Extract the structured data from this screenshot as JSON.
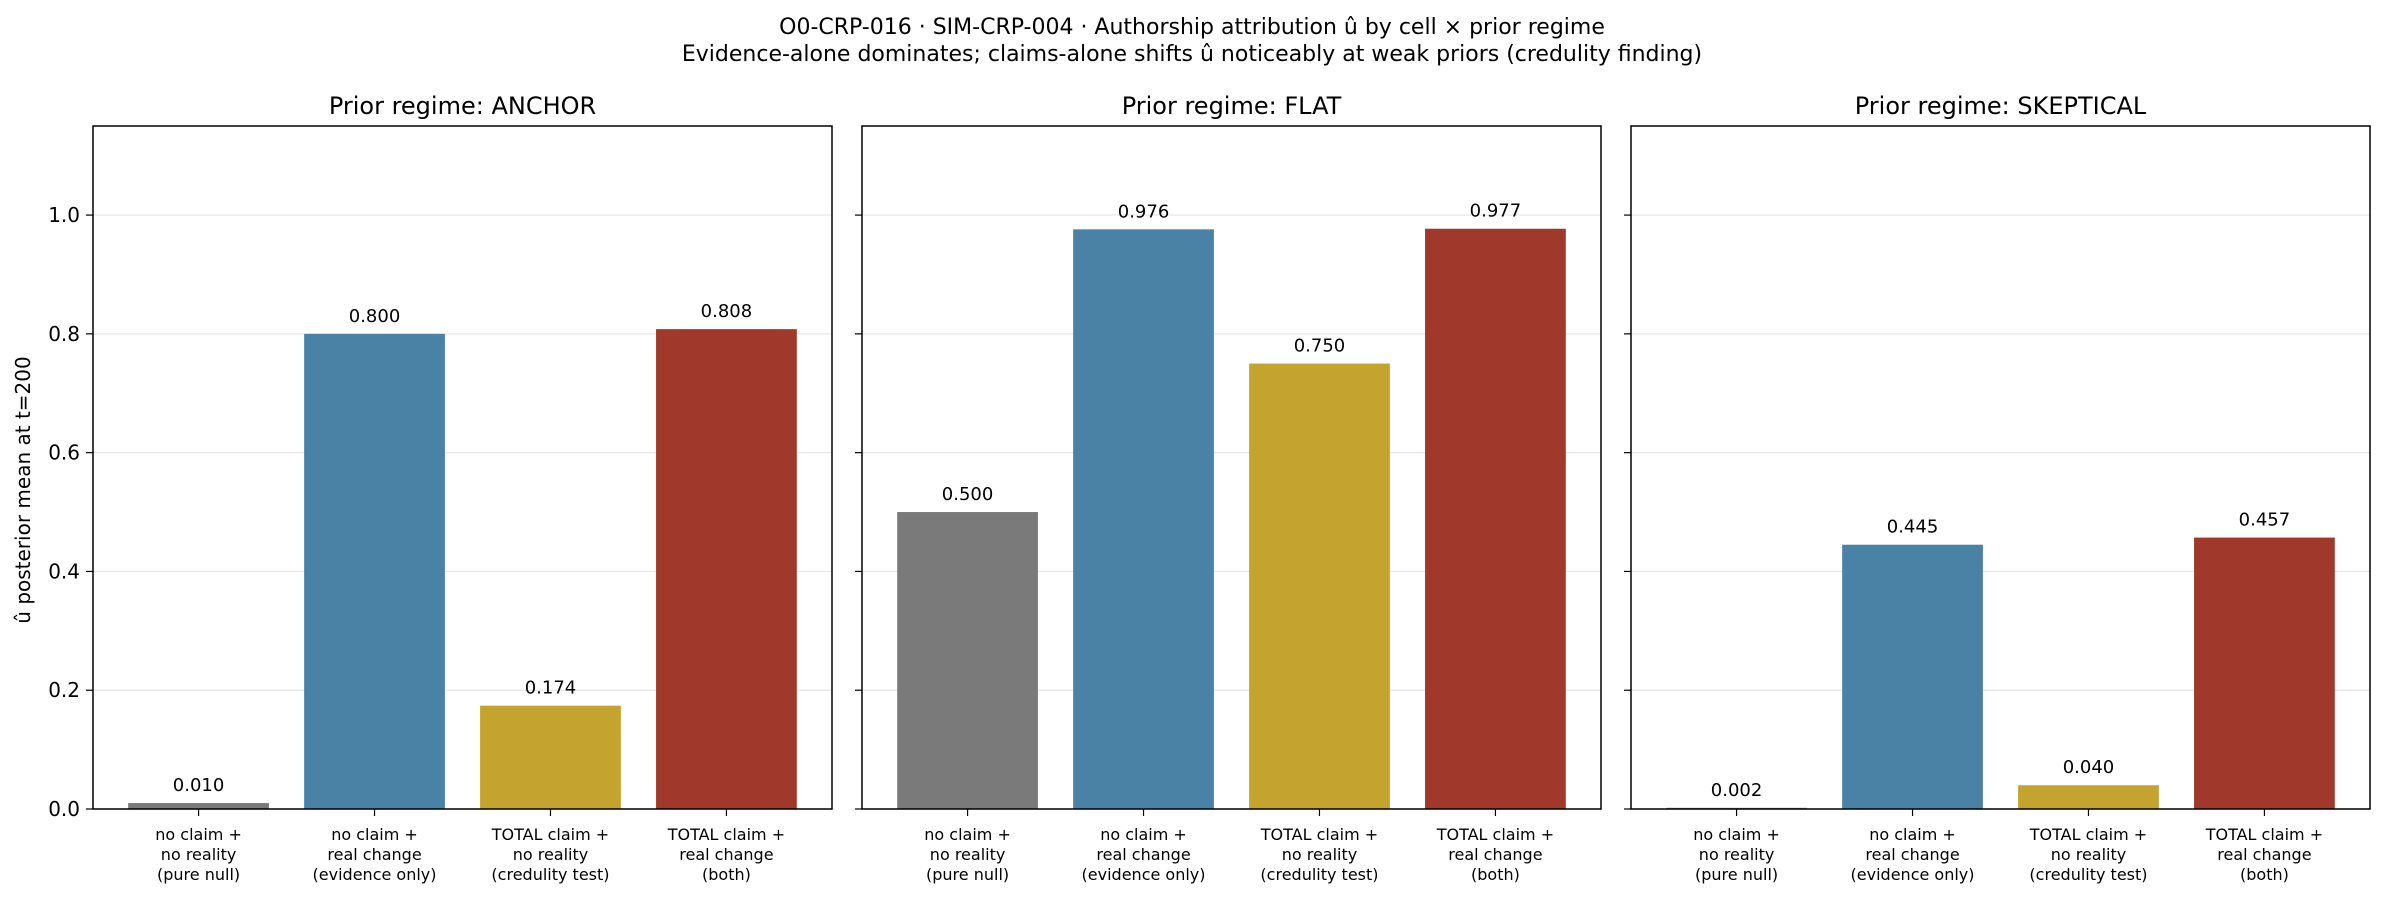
{
  "suptitle": "O0-CRP-016 · SIM-CRP-004 · Authorship attribution û by cell × prior regime",
  "subtitle": "Evidence-alone dominates; claims-alone shifts û noticeably at weak priors (credulity finding)",
  "ylabel": "û posterior mean at t=200",
  "colors": {
    "pure_null": "#7a7a7a",
    "evidence_only": "#4a82a6",
    "credulity_test": "#c4a42e",
    "both": "#a0392b"
  },
  "chart_data": [
    {
      "type": "bar",
      "title": "Prior regime: ANCHOR",
      "categories": [
        [
          "no claim +",
          "no reality",
          "(pure null)"
        ],
        [
          "no claim +",
          "real change",
          "(evidence only)"
        ],
        [
          "TOTAL claim +",
          "no reality",
          "(credulity test)"
        ],
        [
          "TOTAL claim +",
          "real change",
          "(both)"
        ]
      ],
      "values": [
        0.01,
        0.8,
        0.174,
        0.808
      ],
      "value_labels": [
        "0.010",
        "0.800",
        "0.174",
        "0.808"
      ],
      "ylim": [
        0,
        1.15
      ],
      "yticks": [
        "0.0",
        "0.2",
        "0.4",
        "0.6",
        "0.8",
        "1.0"
      ],
      "grid": "y"
    },
    {
      "type": "bar",
      "title": "Prior regime: FLAT",
      "categories": [
        [
          "no claim +",
          "no reality",
          "(pure null)"
        ],
        [
          "no claim +",
          "real change",
          "(evidence only)"
        ],
        [
          "TOTAL claim +",
          "no reality",
          "(credulity test)"
        ],
        [
          "TOTAL claim +",
          "real change",
          "(both)"
        ]
      ],
      "values": [
        0.5,
        0.976,
        0.75,
        0.977
      ],
      "value_labels": [
        "0.500",
        "0.976",
        "0.750",
        "0.977"
      ],
      "ylim": [
        0,
        1.15
      ],
      "grid": "y"
    },
    {
      "type": "bar",
      "title": "Prior regime: SKEPTICAL",
      "categories": [
        [
          "no claim +",
          "no reality",
          "(pure null)"
        ],
        [
          "no claim +",
          "real change",
          "(evidence only)"
        ],
        [
          "TOTAL claim +",
          "no reality",
          "(credulity test)"
        ],
        [
          "TOTAL claim +",
          "real change",
          "(both)"
        ]
      ],
      "values": [
        0.002,
        0.445,
        0.04,
        0.457
      ],
      "value_labels": [
        "0.002",
        "0.445",
        "0.040",
        "0.457"
      ],
      "ylim": [
        0,
        1.15
      ],
      "grid": "y"
    }
  ]
}
